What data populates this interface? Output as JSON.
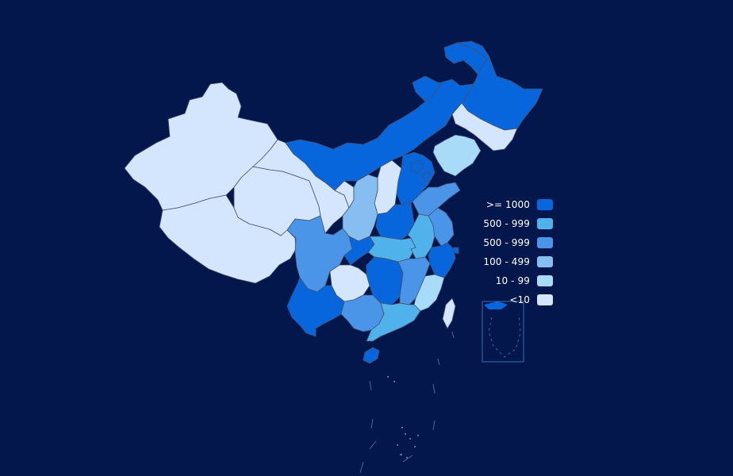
{
  "legend": {
    "items": [
      {
        "label": ">= 1000",
        "color": "#0866dd"
      },
      {
        "label": "500 - 999",
        "color": "#4fb2ea"
      },
      {
        "label": "500 - 999",
        "color": "#4b95e8"
      },
      {
        "label": "100 - 499",
        "color": "#87bef2"
      },
      {
        "label": "10 - 99",
        "color": "#a8dbf8"
      },
      {
        "label": "<10",
        "color": "#d4e5fe"
      }
    ]
  },
  "colors": {
    "background": "#03174d",
    "border": "#43516d"
  }
}
